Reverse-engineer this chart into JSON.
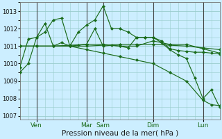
{
  "background_color": "#cceeff",
  "grid_color": "#99cccc",
  "line_color": "#1a6b1a",
  "marker_color": "#1a6b1a",
  "xlabel": "Pression niveau de la mer( hPa )",
  "ylim": [
    1006.8,
    1013.5
  ],
  "yticks": [
    1007,
    1008,
    1009,
    1010,
    1011,
    1012,
    1013
  ],
  "series": [
    {
      "x": [
        0,
        0.5,
        1.0,
        1.5,
        2.0,
        2.5,
        3.0,
        3.5,
        4.0,
        4.5,
        5.0,
        5.5,
        6.0,
        6.5,
        7.0,
        7.5,
        8.0,
        8.5,
        9.0,
        9.5,
        10.0,
        10.5,
        11.0,
        11.5,
        12.0
      ],
      "y": [
        1009.5,
        1010.0,
        1011.5,
        1011.8,
        1012.5,
        1012.6,
        1011.0,
        1011.8,
        1012.2,
        1012.5,
        1013.3,
        1012.0,
        1012.0,
        1011.8,
        1011.5,
        1011.5,
        1011.5,
        1011.2,
        1010.8,
        1010.5,
        1010.3,
        1009.2,
        1008.0,
        1008.5,
        1007.5
      ]
    },
    {
      "x": [
        0,
        0.5,
        1.0,
        1.5,
        2.0,
        2.5,
        3.0,
        3.5,
        4.0,
        4.5,
        5.0,
        5.5,
        6.0,
        6.5,
        7.0,
        7.5,
        8.0,
        8.5,
        9.0,
        9.5,
        10.0,
        10.5,
        11.0,
        11.5,
        12.0
      ],
      "y": [
        1009.8,
        1011.4,
        1011.5,
        1012.3,
        1011.0,
        1011.2,
        1011.0,
        1011.05,
        1011.1,
        1012.0,
        1011.0,
        1011.05,
        1011.0,
        1010.9,
        1011.5,
        1011.5,
        1011.5,
        1011.3,
        1010.85,
        1010.75,
        1010.7,
        1010.65,
        1010.65,
        1010.6,
        1010.55
      ]
    },
    {
      "x": [
        0,
        1.0,
        2.0,
        3.0,
        4.0,
        5.0,
        6.0,
        7.0,
        8.0,
        9.0,
        10.0,
        11.0,
        12.0
      ],
      "y": [
        1011.0,
        1011.0,
        1011.0,
        1011.0,
        1011.0,
        1011.05,
        1011.1,
        1011.1,
        1011.1,
        1011.05,
        1011.0,
        1010.9,
        1010.8
      ]
    },
    {
      "x": [
        0,
        1.0,
        2.0,
        3.0,
        4.0,
        5.0,
        6.0,
        7.0,
        8.0,
        9.0,
        10.0,
        11.0,
        11.5,
        12.0
      ],
      "y": [
        1011.0,
        1011.0,
        1011.0,
        1011.0,
        1010.8,
        1010.6,
        1010.4,
        1010.2,
        1010.0,
        1009.5,
        1009.0,
        1007.9,
        1007.65,
        1007.6
      ]
    },
    {
      "x": [
        0,
        1.0,
        2.0,
        3.0,
        4.0,
        5.0,
        6.0,
        7.0,
        8.0,
        9.0,
        10.0,
        11.0,
        12.0
      ],
      "y": [
        1011.0,
        1011.0,
        1011.0,
        1011.05,
        1011.1,
        1011.1,
        1011.0,
        1011.0,
        1011.3,
        1011.1,
        1011.1,
        1010.85,
        1010.6
      ]
    }
  ],
  "vlines": [
    {
      "x": 1.0,
      "color": "#444444",
      "lw": 0.8
    },
    {
      "x": 4.0,
      "color": "#444444",
      "lw": 0.8
    },
    {
      "x": 5.0,
      "color": "#444444",
      "lw": 0.8
    },
    {
      "x": 8.0,
      "color": "#444444",
      "lw": 0.8
    },
    {
      "x": 11.0,
      "color": "#444444",
      "lw": 0.8
    }
  ],
  "xtick_map": {
    "1.0": "Ven",
    "4.0": "Mar",
    "5.0": "Sam",
    "8.0": "Dim",
    "11.0": "Lun"
  },
  "xlabel_color": "#1a1a1a",
  "xlabel_fontsize": 7.5
}
